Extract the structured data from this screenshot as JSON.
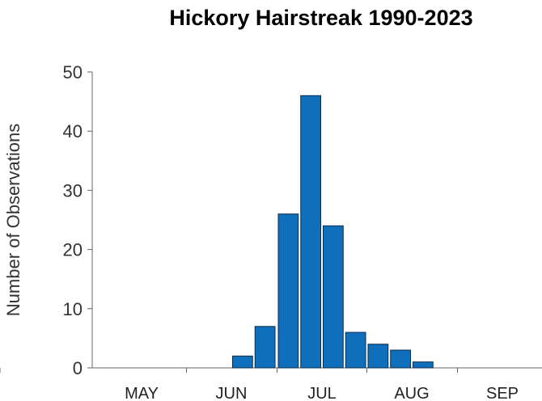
{
  "chart_data": {
    "type": "bar",
    "title": "Hickory Hairstreak 1990-2023",
    "xlabel": "",
    "ylabel": "Number of Observations",
    "ylim": [
      0,
      50
    ],
    "yticks": [
      "0",
      "10",
      "20",
      "30",
      "40",
      "50"
    ],
    "month_labels": [
      "MAY",
      "JUN",
      "JUL",
      "AUG",
      "SEP"
    ],
    "bin_labels": [
      "JUN 3",
      "JUN 4",
      "JUL 1",
      "JUL 2",
      "JUL 3",
      "JUL 4",
      "AUG 1",
      "AUG 2",
      "AUG 3"
    ],
    "values": [
      2,
      7,
      26,
      46,
      24,
      6,
      4,
      3,
      1
    ],
    "grid": false,
    "legend": "none",
    "bar_color": "#0f6fbd"
  }
}
